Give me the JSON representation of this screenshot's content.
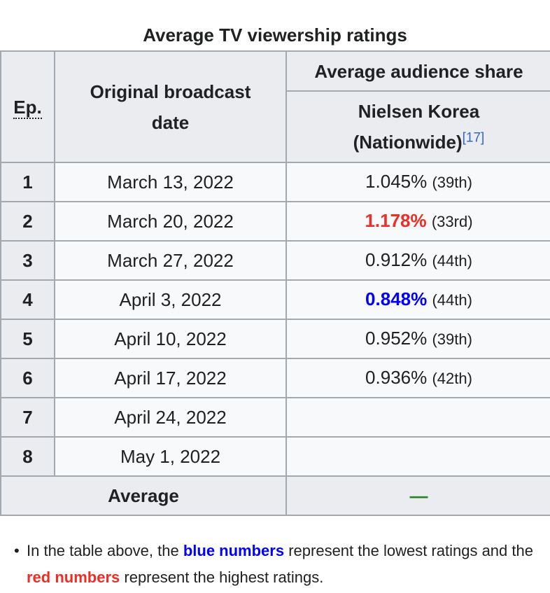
{
  "caption": "Average TV viewership ratings",
  "headers": {
    "ep": "Ep.",
    "date": "Original broadcast date",
    "share": "Average audience share",
    "nielsen": "Nielsen Korea (Nationwide)",
    "nielsen_ref": "[17]"
  },
  "rows": [
    {
      "ep": "1",
      "date": "March 13, 2022",
      "rating": "1.045%",
      "rank": "(39th)",
      "highlight": ""
    },
    {
      "ep": "2",
      "date": "March 20, 2022",
      "rating": "1.178%",
      "rank": "(33rd)",
      "highlight": "high"
    },
    {
      "ep": "3",
      "date": "March 27, 2022",
      "rating": "0.912%",
      "rank": "(44th)",
      "highlight": ""
    },
    {
      "ep": "4",
      "date": "April 3, 2022",
      "rating": "0.848%",
      "rank": "(44th)",
      "highlight": "low"
    },
    {
      "ep": "5",
      "date": "April 10, 2022",
      "rating": "0.952%",
      "rank": "(39th)",
      "highlight": ""
    },
    {
      "ep": "6",
      "date": "April 17, 2022",
      "rating": "0.936%",
      "rank": "(42th)",
      "highlight": ""
    },
    {
      "ep": "7",
      "date": "April 24, 2022",
      "rating": "",
      "rank": "",
      "highlight": ""
    },
    {
      "ep": "8",
      "date": "May 1, 2022",
      "rating": "",
      "rank": "",
      "highlight": ""
    }
  ],
  "average": {
    "label": "Average",
    "value": "—"
  },
  "note": {
    "bullet": "•",
    "part1": "In the table above, the ",
    "blue": "blue numbers",
    "part2": " represent the lowest ratings and the ",
    "red": "red numbers",
    "part3": " represent the highest ratings."
  },
  "colors": {
    "low": "#0000ff",
    "high": "#ee2d24",
    "border": "#a2a9b1",
    "header_bg": "#eaecf0",
    "cell_bg": "#f8f9fa"
  }
}
